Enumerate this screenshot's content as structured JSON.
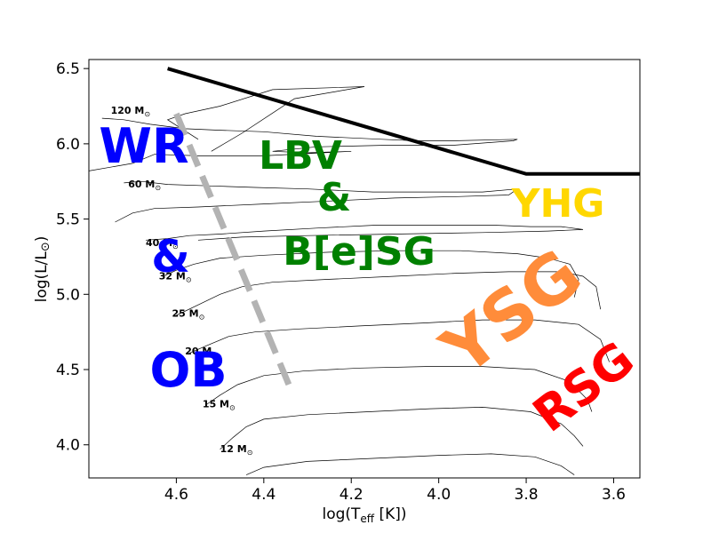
{
  "chart_data": {
    "type": "line",
    "xlabel": "log(T",
    "xlabel_sub": "eff",
    "xlabel_tail": " [K])",
    "ylabel": "log(L/L",
    "ylabel_sun": "⊙",
    "ylabel_tail": ")",
    "xlim": [
      4.8,
      3.54
    ],
    "ylim": [
      3.78,
      6.56
    ],
    "xticks": [
      4.6,
      4.4,
      4.2,
      4.0,
      3.8,
      3.6
    ],
    "xtick_labels": [
      "4.6",
      "4.4",
      "4.2",
      "4.0",
      "3.8",
      "3.6"
    ],
    "yticks": [
      4.0,
      4.5,
      5.0,
      5.5,
      6.0,
      6.5
    ],
    "ytick_labels": [
      "4.0",
      "4.5",
      "5.0",
      "5.5",
      "6.0",
      "6.5"
    ],
    "mass_labels": [
      {
        "text": "120 M",
        "sun": "⊙",
        "x": 4.75,
        "y": 6.2
      },
      {
        "text": "60 M",
        "sun": "⊙",
        "x": 4.71,
        "y": 5.71
      },
      {
        "text": "40 M",
        "sun": "⊙",
        "x": 4.67,
        "y": 5.32
      },
      {
        "text": "32 M",
        "sun": "⊙",
        "x": 4.64,
        "y": 5.1
      },
      {
        "text": "25 M",
        "sun": "⊙",
        "x": 4.61,
        "y": 4.85
      },
      {
        "text": "20 M",
        "sun": "⊙",
        "x": 4.58,
        "y": 4.6
      },
      {
        "text": "15 M",
        "sun": "⊙",
        "x": 4.54,
        "y": 4.25
      },
      {
        "text": "12 M",
        "sun": "⊙",
        "x": 4.5,
        "y": 3.95
      }
    ],
    "tracks": [
      {
        "name": "120",
        "points": [
          [
            4.77,
            6.17
          ],
          [
            4.72,
            6.16
          ],
          [
            4.66,
            6.13
          ],
          [
            4.58,
            6.1
          ],
          [
            4.5,
            6.09
          ],
          [
            4.4,
            6.08
          ],
          [
            4.28,
            6.05
          ],
          [
            4.13,
            6.03
          ],
          [
            4.05,
            6.02
          ],
          [
            3.97,
            6.02
          ],
          [
            3.82,
            6.03
          ],
          [
            3.83,
            6.02
          ],
          [
            3.97,
            5.99
          ],
          [
            4.13,
            5.99
          ],
          [
            4.28,
            5.98
          ],
          [
            4.38,
            5.95
          ],
          [
            4.3,
            5.94
          ],
          [
            4.2,
            5.95
          ],
          [
            4.4,
            5.92
          ],
          [
            4.55,
            5.92
          ],
          [
            4.65,
            5.93
          ],
          [
            4.7,
            5.87
          ],
          [
            4.8,
            5.82
          ]
        ]
      },
      {
        "name": "120b",
        "points": [
          [
            4.52,
            5.95
          ],
          [
            4.45,
            6.07
          ],
          [
            4.33,
            6.3
          ],
          [
            4.17,
            6.38
          ],
          [
            4.38,
            6.36
          ],
          [
            4.5,
            6.25
          ],
          [
            4.58,
            6.2
          ],
          [
            4.62,
            6.16
          ],
          [
            4.55,
            6.03
          ]
        ]
      },
      {
        "name": "60",
        "points": [
          [
            4.72,
            5.74
          ],
          [
            4.68,
            5.75
          ],
          [
            4.62,
            5.73
          ],
          [
            4.52,
            5.72
          ],
          [
            4.42,
            5.71
          ],
          [
            4.3,
            5.7
          ],
          [
            4.15,
            5.68
          ],
          [
            4.02,
            5.68
          ],
          [
            3.9,
            5.68
          ],
          [
            3.82,
            5.7
          ],
          [
            3.84,
            5.66
          ],
          [
            3.95,
            5.65
          ],
          [
            4.1,
            5.64
          ],
          [
            4.25,
            5.62
          ],
          [
            4.4,
            5.6
          ],
          [
            4.55,
            5.58
          ],
          [
            4.65,
            5.57
          ],
          [
            4.7,
            5.54
          ],
          [
            4.74,
            5.48
          ]
        ]
      },
      {
        "name": "40",
        "points": [
          [
            4.67,
            5.36
          ],
          [
            4.62,
            5.37
          ],
          [
            4.57,
            5.39
          ],
          [
            4.5,
            5.4
          ],
          [
            4.4,
            5.42
          ],
          [
            4.28,
            5.44
          ],
          [
            4.14,
            5.46
          ],
          [
            4.0,
            5.46
          ],
          [
            3.88,
            5.46
          ],
          [
            3.79,
            5.45
          ],
          [
            3.72,
            5.45
          ],
          [
            3.67,
            5.43
          ],
          [
            3.75,
            5.42
          ],
          [
            3.9,
            5.41
          ],
          [
            4.1,
            5.4
          ],
          [
            4.3,
            5.39
          ],
          [
            4.45,
            5.38
          ],
          [
            4.55,
            5.36
          ]
        ]
      },
      {
        "name": "32",
        "points": [
          [
            4.63,
            5.12
          ],
          [
            4.6,
            5.16
          ],
          [
            4.56,
            5.2
          ],
          [
            4.5,
            5.24
          ],
          [
            4.4,
            5.26
          ],
          [
            4.25,
            5.28
          ],
          [
            4.1,
            5.29
          ],
          [
            3.95,
            5.29
          ],
          [
            3.82,
            5.27
          ],
          [
            3.75,
            5.24
          ],
          [
            3.7,
            5.2
          ],
          [
            3.68,
            5.1
          ],
          [
            3.69,
            4.98
          ]
        ]
      },
      {
        "name": "25",
        "points": [
          [
            4.6,
            4.86
          ],
          [
            4.55,
            4.93
          ],
          [
            4.5,
            5.0
          ],
          [
            4.45,
            5.05
          ],
          [
            4.38,
            5.08
          ],
          [
            4.25,
            5.1
          ],
          [
            4.1,
            5.12
          ],
          [
            3.96,
            5.14
          ],
          [
            3.84,
            5.15
          ],
          [
            3.72,
            5.15
          ],
          [
            3.67,
            5.12
          ],
          [
            3.64,
            5.05
          ],
          [
            3.63,
            4.9
          ]
        ]
      },
      {
        "name": "20",
        "points": [
          [
            4.57,
            4.61
          ],
          [
            4.53,
            4.66
          ],
          [
            4.48,
            4.72
          ],
          [
            4.42,
            4.75
          ],
          [
            4.32,
            4.77
          ],
          [
            4.18,
            4.79
          ],
          [
            4.03,
            4.81
          ],
          [
            3.9,
            4.83
          ],
          [
            3.78,
            4.83
          ],
          [
            3.68,
            4.8
          ],
          [
            3.63,
            4.7
          ],
          [
            3.61,
            4.55
          ]
        ]
      },
      {
        "name": "15",
        "points": [
          [
            4.53,
            4.27
          ],
          [
            4.5,
            4.33
          ],
          [
            4.46,
            4.4
          ],
          [
            4.4,
            4.46
          ],
          [
            4.31,
            4.49
          ],
          [
            4.18,
            4.51
          ],
          [
            4.03,
            4.52
          ],
          [
            3.9,
            4.52
          ],
          [
            3.78,
            4.5
          ],
          [
            3.7,
            4.42
          ],
          [
            3.66,
            4.3
          ],
          [
            3.65,
            4.22
          ]
        ]
      },
      {
        "name": "12",
        "points": [
          [
            4.5,
            3.97
          ],
          [
            4.47,
            4.05
          ],
          [
            4.44,
            4.12
          ],
          [
            4.4,
            4.17
          ],
          [
            4.3,
            4.2
          ],
          [
            4.16,
            4.22
          ],
          [
            4.02,
            4.24
          ],
          [
            3.9,
            4.25
          ],
          [
            3.79,
            4.22
          ],
          [
            3.72,
            4.14
          ],
          [
            3.69,
            4.06
          ],
          [
            3.67,
            3.99
          ]
        ]
      },
      {
        "name": "10",
        "points": [
          [
            4.44,
            3.8
          ],
          [
            4.4,
            3.85
          ],
          [
            4.3,
            3.89
          ],
          [
            4.15,
            3.91
          ],
          [
            4.0,
            3.93
          ],
          [
            3.88,
            3.94
          ],
          [
            3.78,
            3.92
          ],
          [
            3.72,
            3.86
          ],
          [
            3.69,
            3.8
          ]
        ]
      }
    ],
    "hd_limit": [
      [
        4.62,
        6.5
      ],
      [
        3.8,
        5.8
      ],
      [
        3.54,
        5.8
      ]
    ],
    "zams_dashed": [
      [
        4.6,
        6.2
      ],
      [
        4.34,
        4.38
      ]
    ],
    "regions": [
      {
        "text": "WR",
        "color": "#0000ff"
      },
      {
        "text": "&",
        "color": "#0000ff"
      },
      {
        "text": "OB",
        "color": "#0000ff"
      },
      {
        "text": "LBV",
        "color": "#008000"
      },
      {
        "text": "&",
        "color": "#008000"
      },
      {
        "text": "B[e]SG",
        "color": "#008000"
      },
      {
        "text": "YHG",
        "color": "#ffd700"
      },
      {
        "text": "YSG",
        "color": "#ff8c3a"
      },
      {
        "text": "RSG",
        "color": "#ff0000"
      }
    ]
  }
}
